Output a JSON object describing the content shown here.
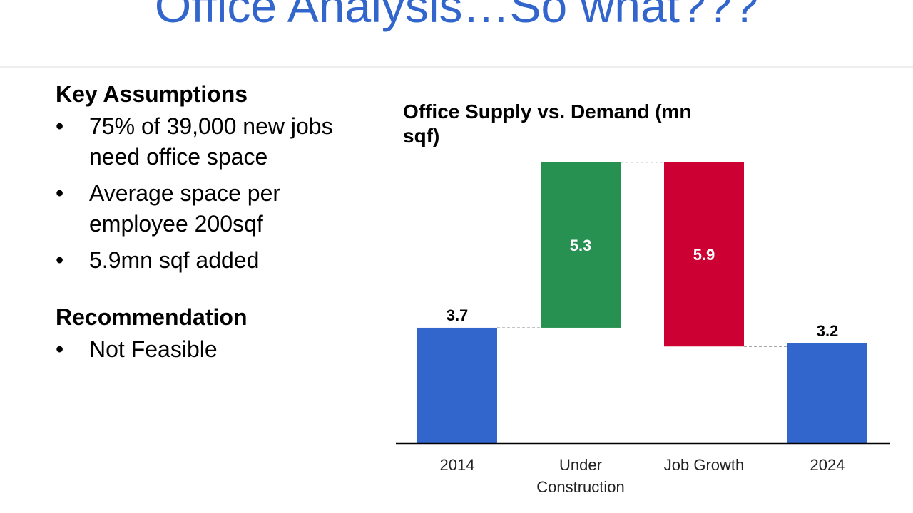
{
  "slide": {
    "title": "Office Analysis…So what???"
  },
  "key_assumptions": {
    "heading": "Key Assumptions",
    "bullets": [
      "75% of 39,000 new jobs need office space",
      "Average space per employee 200sqf",
      "5.9mn sqf added"
    ]
  },
  "recommendation": {
    "heading": "Recommendation",
    "bullets": [
      "Not Feasible"
    ]
  },
  "bullet_glyph": "•",
  "colors": {
    "title": "#3366cc",
    "total_bar": "#3366cc",
    "increase_bar": "#279152",
    "decrease_bar": "#cc0033"
  },
  "chart_data": {
    "type": "bar",
    "subtype": "waterfall",
    "title": "Office Supply vs. Demand (mn sqf)",
    "categories": [
      "2014",
      "Under Construction",
      "Job Growth",
      "2024"
    ],
    "category_lines": [
      [
        "2014"
      ],
      [
        "Under",
        "Construction"
      ],
      [
        "Job Growth"
      ],
      [
        "2024"
      ]
    ],
    "values": [
      3.7,
      5.3,
      -5.9,
      3.2
    ],
    "value_labels": [
      "3.7",
      "5.3",
      "5.9",
      "3.2"
    ],
    "bar_kinds": [
      "total",
      "increase",
      "decrease",
      "total"
    ],
    "ylim": [
      0,
      9
    ],
    "grid": false,
    "legend": "none"
  }
}
